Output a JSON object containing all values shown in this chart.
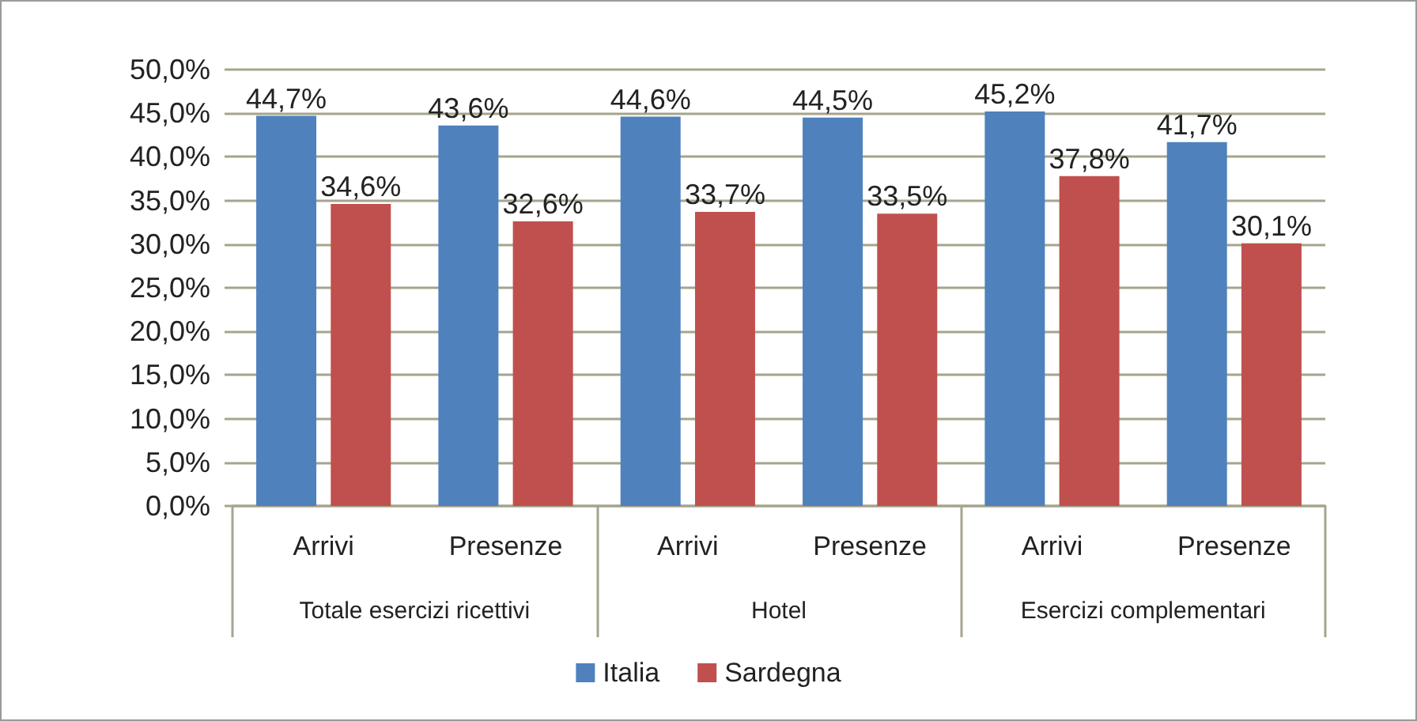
{
  "chart_data": {
    "type": "bar",
    "categories": [
      "Arrivi",
      "Presenze",
      "Arrivi",
      "Presenze",
      "Arrivi",
      "Presenze"
    ],
    "annotations": [
      "Totale esercizi ricettivi",
      "Hotel",
      "Esercizi complementari"
    ],
    "series": [
      {
        "name": "Italia",
        "color": "#4f81bd",
        "values": [
          44.7,
          43.6,
          44.6,
          44.5,
          45.2,
          41.7
        ],
        "value_labels": [
          "44,7%",
          "43,6%",
          "44,6%",
          "44,5%",
          "45,2%",
          "41,7%"
        ]
      },
      {
        "name": "Sardegna",
        "color": "#c0504d",
        "values": [
          34.6,
          32.6,
          33.7,
          33.5,
          37.8,
          30.1
        ],
        "value_labels": [
          "34,6%",
          "32,6%",
          "33,7%",
          "33,5%",
          "37,8%",
          "30,1%"
        ]
      }
    ],
    "ylim": [
      0,
      50
    ],
    "yticks": [
      {
        "value": 0,
        "label": "0,0%"
      },
      {
        "value": 5,
        "label": "5,0%"
      },
      {
        "value": 10,
        "label": "10,0%"
      },
      {
        "value": 15,
        "label": "15,0%"
      },
      {
        "value": 20,
        "label": "20,0%"
      },
      {
        "value": 25,
        "label": "25,0%"
      },
      {
        "value": 30,
        "label": "30,0%"
      },
      {
        "value": 35,
        "label": "35,0%"
      },
      {
        "value": 40,
        "label": "40,0%"
      },
      {
        "value": 45,
        "label": "45,0%"
      },
      {
        "value": 50,
        "label": "50,0%"
      }
    ],
    "grid": "y",
    "legend": "bottom"
  }
}
